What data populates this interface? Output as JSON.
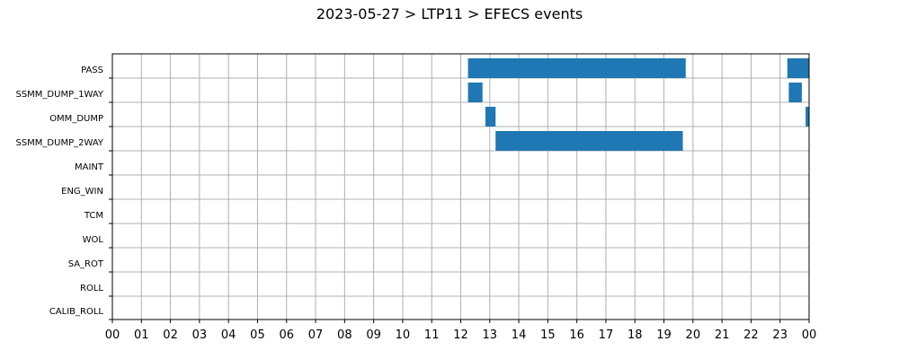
{
  "chart_data": {
    "type": "bar",
    "title": "2023-05-27 > LTP11 > EFECS events",
    "xlabel": "",
    "ylabel": "",
    "categories": [
      "PASS",
      "SSMM_DUMP_1WAY",
      "OMM_DUMP",
      "SSMM_DUMP_2WAY",
      "MAINT",
      "ENG_WIN",
      "TCM",
      "WOL",
      "SA_ROT",
      "ROLL",
      "CALIB_ROLL"
    ],
    "x_tick_labels": [
      "00",
      "01",
      "02",
      "03",
      "04",
      "05",
      "06",
      "07",
      "08",
      "09",
      "10",
      "11",
      "12",
      "13",
      "14",
      "15",
      "16",
      "17",
      "18",
      "19",
      "20",
      "21",
      "22",
      "23",
      "00"
    ],
    "xlim": [
      0,
      24
    ],
    "grid": true,
    "bar_color": "#1f77b4",
    "events": [
      {
        "category": "PASS",
        "start": 12.25,
        "end": 19.75
      },
      {
        "category": "PASS",
        "start": 23.25,
        "end": 24.0
      },
      {
        "category": "SSMM_DUMP_1WAY",
        "start": 12.25,
        "end": 12.75
      },
      {
        "category": "SSMM_DUMP_1WAY",
        "start": 23.3,
        "end": 23.75
      },
      {
        "category": "OMM_DUMP",
        "start": 12.85,
        "end": 13.2
      },
      {
        "category": "OMM_DUMP",
        "start": 23.88,
        "end": 24.0
      },
      {
        "category": "SSMM_DUMP_2WAY",
        "start": 13.2,
        "end": 19.65
      }
    ]
  }
}
